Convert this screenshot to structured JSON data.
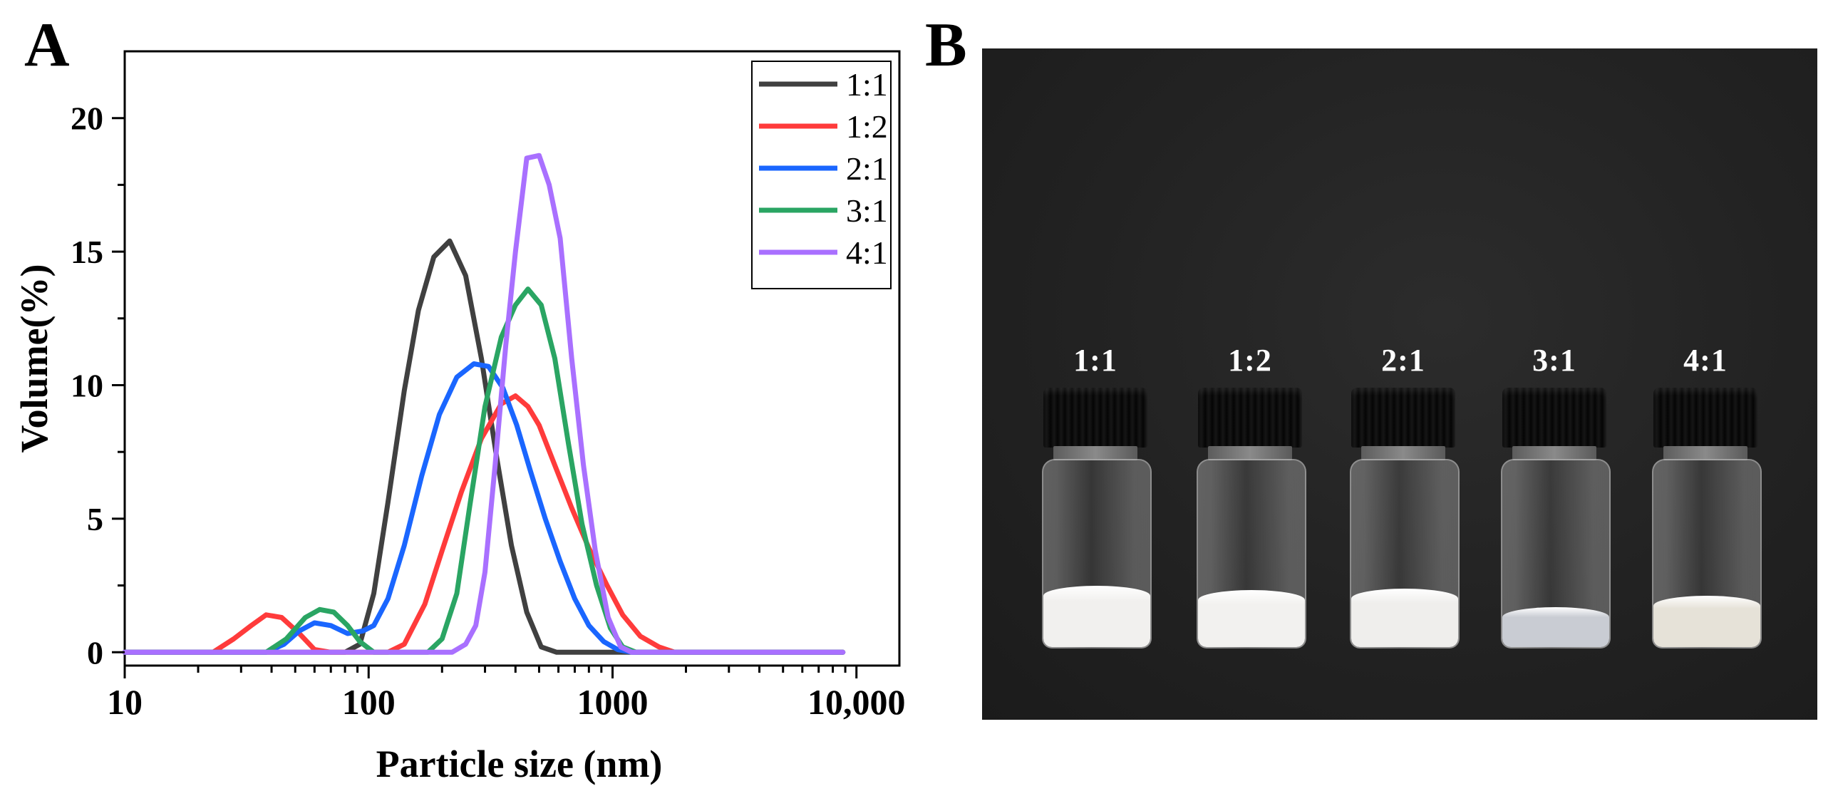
{
  "panels": {
    "a_label": "A",
    "b_label": "B"
  },
  "chart_data": {
    "type": "line",
    "x_scale": "log",
    "xlabel": "Particle size (nm)",
    "ylabel": "Volume(%)",
    "xlim": [
      10,
      15000
    ],
    "ylim": [
      -0.5,
      22.5
    ],
    "x_ticks": [
      10,
      100,
      1000,
      10000
    ],
    "x_tick_labels": [
      "10",
      "100",
      "1000",
      "10,000"
    ],
    "y_ticks": [
      0,
      5,
      10,
      15,
      20
    ],
    "y_tick_labels": [
      "0",
      "5",
      "10",
      "15",
      "20"
    ],
    "legend_position": "top-right",
    "series": [
      {
        "name": "1:1",
        "color": "#404040",
        "x": [
          10,
          80,
          92,
          105,
          120,
          140,
          160,
          185,
          215,
          250,
          290,
          335,
          385,
          445,
          510,
          590,
          680,
          1000,
          8800
        ],
        "y": [
          0,
          0,
          0.3,
          2.2,
          5.6,
          9.8,
          12.8,
          14.8,
          15.4,
          14.1,
          11.0,
          7.3,
          4.0,
          1.5,
          0.2,
          0,
          0,
          0,
          0
        ]
      },
      {
        "name": "1:2",
        "color": "#ff3b3b",
        "x": [
          10,
          23,
          28,
          33,
          38,
          44,
          52,
          60,
          70,
          120,
          140,
          170,
          200,
          240,
          290,
          350,
          400,
          450,
          500,
          580,
          680,
          800,
          950,
          1100,
          1300,
          1550,
          1800,
          2100,
          8800
        ],
        "y": [
          0,
          0,
          0.5,
          1.0,
          1.4,
          1.3,
          0.7,
          0.1,
          0,
          0,
          0.3,
          1.8,
          3.8,
          6.0,
          8.0,
          9.3,
          9.6,
          9.2,
          8.5,
          7.0,
          5.4,
          3.9,
          2.5,
          1.4,
          0.6,
          0.2,
          0,
          0,
          0
        ]
      },
      {
        "name": "2:1",
        "color": "#1a66ff",
        "x": [
          10,
          38,
          45,
          52,
          60,
          70,
          82,
          95,
          105,
          120,
          140,
          165,
          195,
          230,
          270,
          310,
          355,
          405,
          460,
          530,
          610,
          700,
          800,
          920,
          1050,
          1200,
          8800
        ],
        "y": [
          0,
          0,
          0.3,
          0.8,
          1.1,
          1.0,
          0.7,
          0.8,
          1.0,
          2.0,
          4.0,
          6.6,
          8.9,
          10.3,
          10.8,
          10.7,
          9.9,
          8.5,
          6.8,
          5.0,
          3.4,
          2.0,
          1.0,
          0.4,
          0.1,
          0,
          0
        ]
      },
      {
        "name": "3:1",
        "color": "#2aa563",
        "x": [
          10,
          38,
          46,
          55,
          63,
          72,
          82,
          92,
          105,
          175,
          200,
          230,
          260,
          300,
          350,
          400,
          450,
          510,
          580,
          660,
          750,
          860,
          980,
          1100,
          1250,
          8800
        ],
        "y": [
          0,
          0,
          0.5,
          1.3,
          1.6,
          1.5,
          1.0,
          0.4,
          0,
          0,
          0.5,
          2.2,
          5.5,
          9.2,
          11.8,
          13.0,
          13.6,
          13.0,
          11.0,
          7.8,
          4.8,
          2.5,
          0.9,
          0.2,
          0,
          0
        ]
      },
      {
        "name": "4:1",
        "color": "#a970ff",
        "x": [
          10,
          220,
          250,
          275,
          300,
          330,
          365,
          400,
          445,
          500,
          550,
          610,
          680,
          760,
          850,
          960,
          1080,
          1200,
          8800
        ],
        "y": [
          0,
          0,
          0.3,
          1.0,
          3.0,
          7.0,
          11.5,
          15.0,
          18.5,
          18.6,
          17.5,
          15.5,
          11.0,
          7.0,
          3.8,
          1.3,
          0.2,
          0,
          0
        ]
      }
    ]
  },
  "photo": {
    "vials": [
      {
        "label": "1:1",
        "liquid_color": "#f1f0ee"
      },
      {
        "label": "1:2",
        "liquid_color": "#f2f1ef"
      },
      {
        "label": "2:1",
        "liquid_color": "#efeeec"
      },
      {
        "label": "3:1",
        "liquid_color": "#c9ccd3"
      },
      {
        "label": "4:1",
        "liquid_color": "#e6e2d8"
      }
    ]
  }
}
